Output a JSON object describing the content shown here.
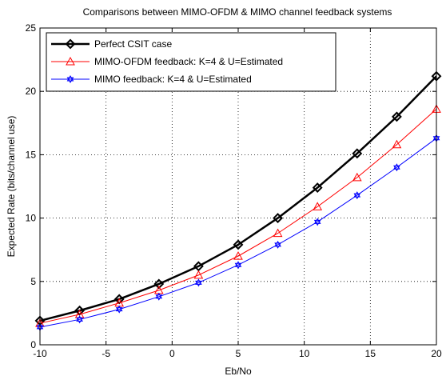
{
  "chart_data": {
    "type": "line",
    "title": "Comparisons between MIMO-OFDM & MIMO channel feedback systems",
    "xlabel": "Eb/No",
    "ylabel": "Expected Rate (bits/channel use)",
    "xlim": [
      -10,
      20
    ],
    "ylim": [
      0,
      25
    ],
    "xticks": [
      -10,
      -5,
      0,
      5,
      10,
      15,
      20
    ],
    "yticks": [
      0,
      5,
      10,
      15,
      20,
      25
    ],
    "grid": true,
    "legend_position": "top-left",
    "x": [
      -10,
      -7,
      -4,
      -1,
      2,
      5,
      8,
      11,
      14,
      17,
      20
    ],
    "series": [
      {
        "name": "Perfect CSIT case",
        "color": "#000000",
        "marker": "diamond",
        "values": [
          1.9,
          2.7,
          3.6,
          4.8,
          6.2,
          7.9,
          10.0,
          12.4,
          15.1,
          18.0,
          21.2
        ]
      },
      {
        "name": "MIMO-OFDM feedback: K=4 & U=Estimated",
        "color": "#ff0000",
        "marker": "triangle",
        "values": [
          1.7,
          2.4,
          3.3,
          4.3,
          5.5,
          7.0,
          8.8,
          10.9,
          13.2,
          15.8,
          18.6
        ]
      },
      {
        "name": "MIMO feedback: K=4 & U=Estimated",
        "color": "#0000ff",
        "marker": "hexagram",
        "values": [
          1.4,
          2.0,
          2.8,
          3.8,
          4.9,
          6.3,
          7.9,
          9.7,
          11.8,
          14.0,
          16.3
        ]
      }
    ]
  }
}
